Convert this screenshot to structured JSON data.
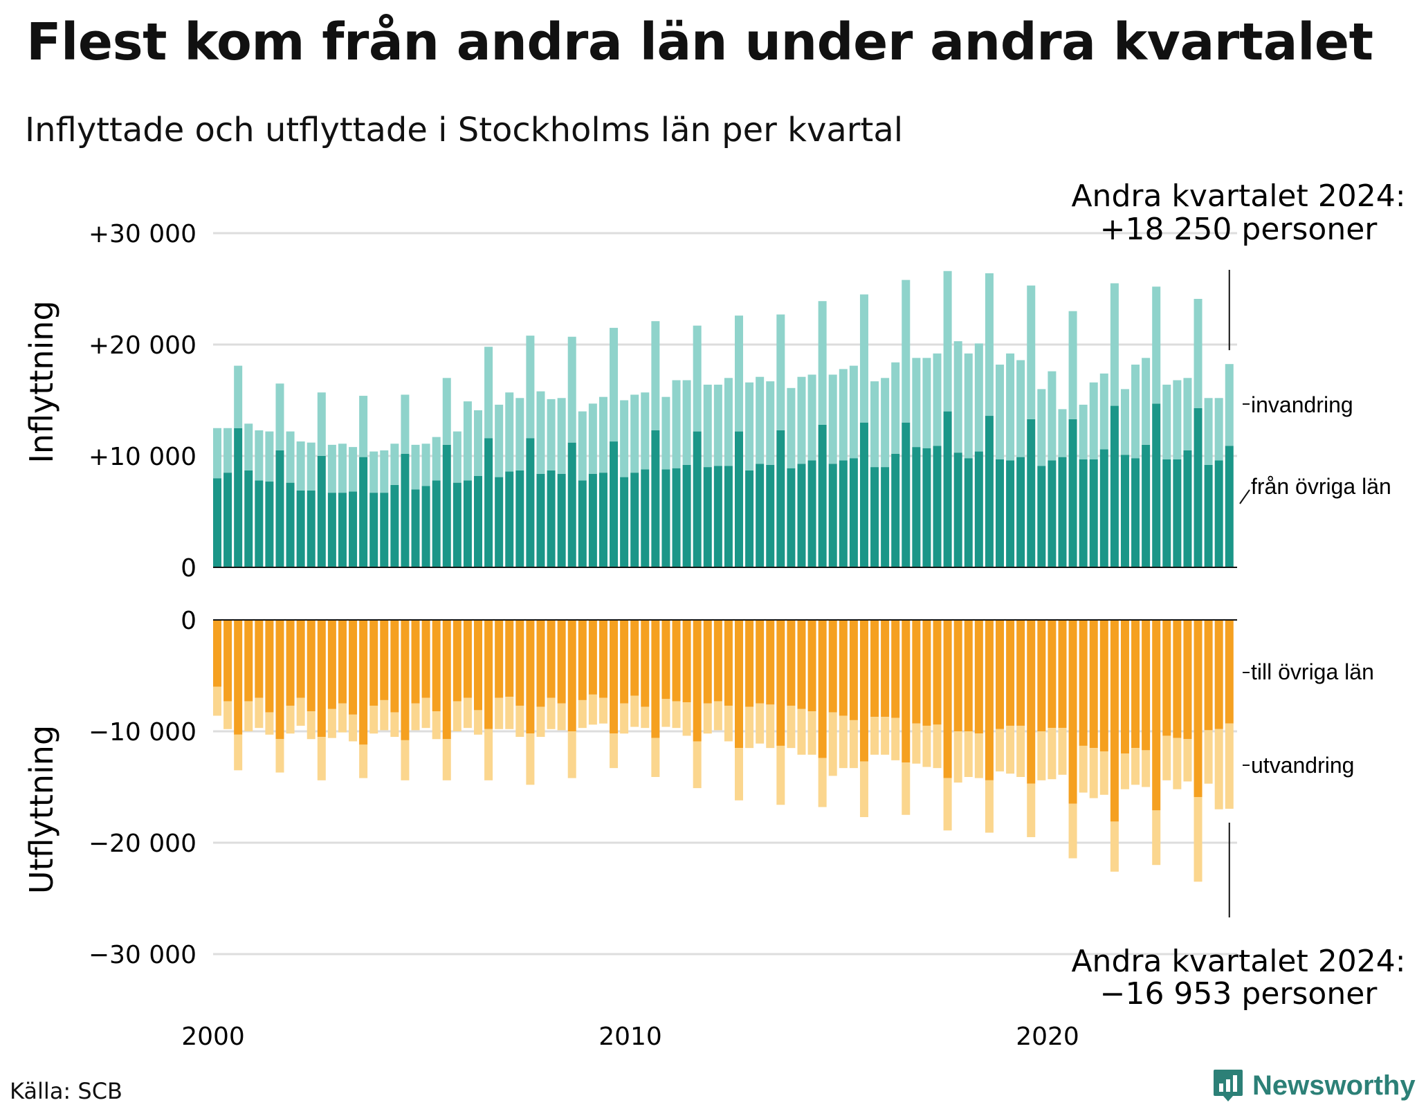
{
  "title": "Flest kom från andra län under andra kvartalet",
  "subtitle": "Inflyttade och utflyttade i Stockholms län per kvartal",
  "source": "Källa: SCB",
  "brand": "Newsworthy",
  "colors": {
    "in_lan": "#1b9688",
    "in_invandring": "#8fd3cb",
    "ut_lan": "#f5a020",
    "ut_utvandring": "#fbd68e",
    "grid": "#dddddd",
    "brand": "#2c8077"
  },
  "chart_data": {
    "type": "bar",
    "stacked": true,
    "x_start": "2000 Q1",
    "x_ticks": [
      "2000",
      "2010",
      "2020"
    ],
    "panels": [
      {
        "name": "Inflyttning",
        "ylabel": "Inflyttning",
        "ylim": [
          0,
          30000
        ],
        "yticks": [
          0,
          10000,
          20000,
          30000
        ],
        "ytick_labels": [
          "0",
          "+10 000",
          "+20 000",
          "+30 000"
        ],
        "annotation_line1": "Andra kvartalet 2024:",
        "annotation_line2": "+18 250 personer",
        "series": [
          {
            "name": "från övriga län",
            "values": [
              8000,
              8500,
              12500,
              8700,
              7800,
              7700,
              10500,
              7600,
              6900,
              6900,
              10000,
              6700,
              6700,
              6800,
              9900,
              6700,
              6700,
              7400,
              10200,
              7000,
              7300,
              7800,
              11000,
              7600,
              7800,
              8200,
              11600,
              8100,
              8600,
              8700,
              11600,
              8400,
              8700,
              8400,
              11200,
              7800,
              8400,
              8500,
              11300,
              8100,
              8500,
              8800,
              12300,
              8800,
              8900,
              9200,
              12200,
              9000,
              9100,
              9100,
              12200,
              8700,
              9300,
              9200,
              12300,
              8900,
              9300,
              9600,
              12800,
              9300,
              9600,
              9800,
              13000,
              9000,
              9000,
              10200,
              13000,
              10800,
              10700,
              10900,
              14000,
              10300,
              9800,
              10400,
              13600,
              9700,
              9600,
              9900,
              13300,
              9100,
              9600,
              9900,
              13300,
              9700,
              9700,
              10600,
              14500,
              10100,
              9800,
              11000,
              14700,
              9700,
              9700,
              10500,
              14300,
              9200,
              9600,
              10900
            ]
          },
          {
            "name": "invandring",
            "values": [
              4500,
              4000,
              5600,
              4200,
              4500,
              4500,
              6000,
              4600,
              4400,
              4300,
              5700,
              4300,
              4400,
              4000,
              5500,
              3700,
              3800,
              3700,
              5300,
              4000,
              3800,
              3900,
              6000,
              4600,
              7100,
              5900,
              8200,
              6500,
              7100,
              6500,
              9200,
              7400,
              6400,
              6800,
              9500,
              6200,
              6300,
              6800,
              10200,
              6900,
              7000,
              6900,
              9800,
              6500,
              7900,
              7600,
              9500,
              7400,
              7300,
              7900,
              10400,
              7900,
              7800,
              7500,
              10400,
              7200,
              7800,
              7700,
              11100,
              8000,
              8200,
              8300,
              11500,
              7700,
              8000,
              8200,
              12800,
              8000,
              8100,
              8300,
              12600,
              10000,
              9400,
              9700,
              12800,
              8500,
              9600,
              8700,
              12000,
              6900,
              8000,
              4300,
              9700,
              4900,
              6900,
              6800,
              11000,
              5900,
              8400,
              7800,
              10500,
              6700,
              7100,
              6500,
              9800,
              6000,
              5600,
              7350
            ]
          }
        ],
        "right_labels": [
          "invandring",
          "från övriga län"
        ]
      },
      {
        "name": "Utflyttning",
        "ylabel": "Utflyttning",
        "ylim": [
          -30000,
          0
        ],
        "yticks": [
          0,
          -10000,
          -20000,
          -30000
        ],
        "ytick_labels": [
          "0",
          "−10 000",
          "−20 000",
          "−30 000"
        ],
        "annotation_line1": "Andra kvartalet 2024:",
        "annotation_line2": "−16 953 personer",
        "series": [
          {
            "name": "till övriga län",
            "values": [
              -6000,
              -7300,
              -10300,
              -7300,
              -7000,
              -8300,
              -10700,
              -7700,
              -7000,
              -8200,
              -10500,
              -8000,
              -7500,
              -8500,
              -11200,
              -7700,
              -7200,
              -8300,
              -10800,
              -7500,
              -7000,
              -8200,
              -10700,
              -7300,
              -7000,
              -8100,
              -9800,
              -7000,
              -6900,
              -7700,
              -10200,
              -7800,
              -7000,
              -7500,
              -10000,
              -7200,
              -6700,
              -7000,
              -10200,
              -7500,
              -6800,
              -7800,
              -10600,
              -7100,
              -7300,
              -7400,
              -10900,
              -7500,
              -7300,
              -7700,
              -11500,
              -7800,
              -7500,
              -7600,
              -11300,
              -7700,
              -8000,
              -8200,
              -12400,
              -8300,
              -8600,
              -9000,
              -12700,
              -8700,
              -8700,
              -8800,
              -12800,
              -9300,
              -9500,
              -9400,
              -14200,
              -10000,
              -10000,
              -10200,
              -14400,
              -9800,
              -9500,
              -9500,
              -14700,
              -10000,
              -9700,
              -9700,
              -16500,
              -11300,
              -11500,
              -11800,
              -18100,
              -12000,
              -11500,
              -11700,
              -17100,
              -10400,
              -10600,
              -10700,
              -15900,
              -9900,
              -9800,
              -9300
            ]
          },
          {
            "name": "utvandring",
            "values": [
              -2600,
              -2500,
              -3200,
              -2700,
              -2700,
              -2000,
              -3000,
              -2500,
              -2500,
              -2500,
              -3900,
              -2600,
              -2600,
              -2400,
              -3000,
              -2500,
              -2700,
              -2200,
              -3600,
              -2400,
              -2700,
              -2500,
              -3700,
              -2700,
              -2700,
              -2200,
              -4600,
              -2800,
              -2900,
              -2800,
              -4600,
              -2700,
              -2800,
              -2400,
              -4200,
              -2500,
              -2700,
              -2300,
              -3100,
              -2700,
              -2800,
              -1900,
              -3500,
              -2500,
              -2400,
              -3000,
              -4200,
              -2700,
              -2600,
              -3200,
              -4700,
              -3700,
              -3600,
              -3900,
              -5300,
              -3800,
              -4100,
              -3900,
              -4400,
              -5700,
              -4700,
              -4300,
              -5000,
              -3400,
              -3400,
              -3800,
              -4700,
              -3600,
              -3700,
              -3900,
              -4700,
              -4600,
              -4100,
              -4000,
              -4700,
              -3800,
              -4300,
              -4600,
              -4800,
              -4400,
              -4600,
              -4200,
              -4900,
              -4200,
              -4500,
              -3900,
              -4500,
              -3200,
              -3300,
              -3300,
              -4900,
              -4000,
              -4600,
              -3800,
              -7600,
              -4800,
              -7200,
              -7653
            ]
          }
        ],
        "right_labels": [
          "till övriga län",
          "utvandring"
        ]
      }
    ]
  }
}
